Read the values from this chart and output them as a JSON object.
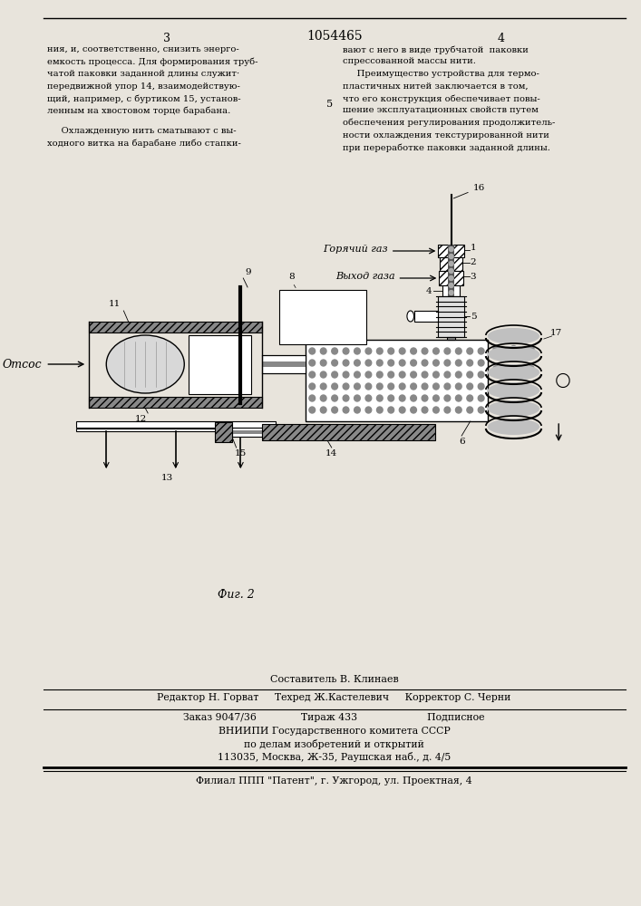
{
  "page_width": 7.07,
  "page_height": 10.0,
  "bg_color": "#e8e4dc",
  "header_number": "1054465",
  "page_left": "3",
  "page_right": "4",
  "top_text_left": [
    "ния, и, соответственно, снизить энерго-",
    "емкость процесса. Для формирования труб-",
    "чатой паковки заданной длины служит·",
    "передвижной упор 14, взаимодействую-",
    "щий, например, с буртиком 15, установ-",
    "ленным на хвостовом торце барабана."
  ],
  "top_text_right": [
    "вают с него в виде трубчатой  паковки",
    "спрессованной массы нити.",
    "     Преимущество устройства для термо-",
    "пластичных нитей заключается в том,",
    "что его конструкция обеспечивает повы-",
    "шение эксплуатационных свойств путем",
    "обеспечения регулирования продолжитель-",
    "ности охлаждения текстурированной нити",
    "при переработке паковки заданной длины."
  ],
  "middle_text_left": [
    "     Охлажденную нить сматывают с вы-",
    "ходного витка на барабане либо стапки-"
  ],
  "line5_text": "5",
  "caption": "Фиг. 2",
  "footer_lines": [
    "Составитель В. Клинаев",
    "Редактор Н. Горват     Техред Ж.Кастелевич     Корректор С. Черни",
    "Заказ 9047/36              Тираж 433                      Подписное",
    "ВНИИПИ Государственного комитета СССР",
    "по делам изобретений и открытий",
    "113035, Москва, Ж-35, Раушская наб., д. 4/5",
    "Филиал ППП \"Патент\", г. Ужгород, ул. Проектная, 4"
  ]
}
